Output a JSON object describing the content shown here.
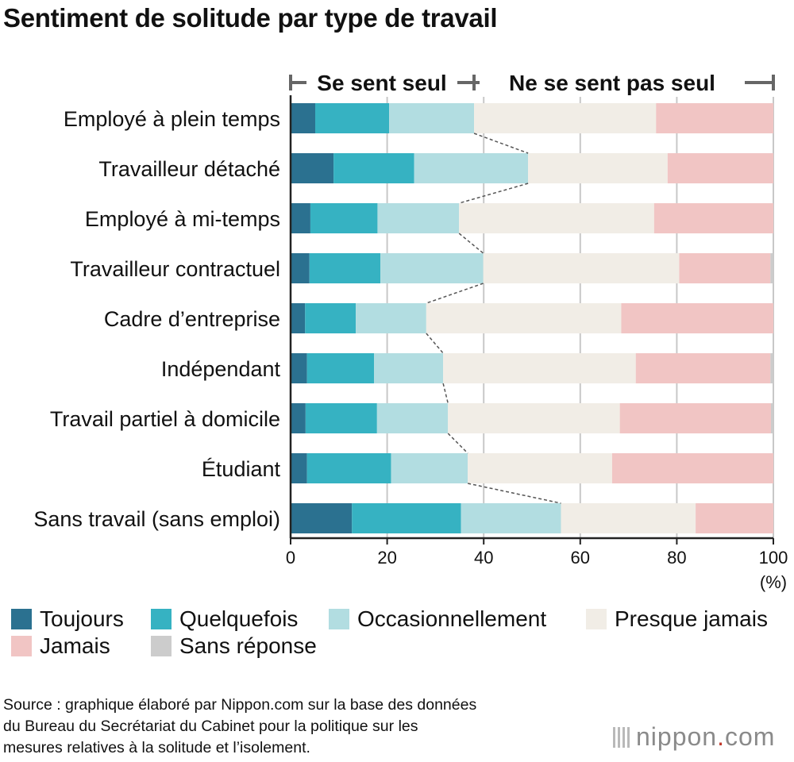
{
  "title": "Sentiment de solitude par type de travail",
  "chart_data": {
    "type": "bar",
    "orientation": "horizontal",
    "stacked": true,
    "title": "Sentiment de solitude par type de travail",
    "categories": [
      "Employé à plein temps",
      "Travailleur détaché",
      "Employé à mi-temps",
      "Travailleur contractuel",
      "Cadre d’entreprise",
      "Indépendant",
      "Travail partiel à domicile",
      "Étudiant",
      "Sans travail (sans emploi)"
    ],
    "series": [
      {
        "name": "Toujours",
        "color": "#2b7190",
        "values": [
          5.1,
          8.9,
          4.1,
          3.9,
          3.0,
          3.4,
          3.1,
          3.4,
          12.7
        ]
      },
      {
        "name": "Quelquefois",
        "color": "#36b2c2",
        "values": [
          15.3,
          16.7,
          13.9,
          14.7,
          10.5,
          13.9,
          14.8,
          17.4,
          22.6
        ]
      },
      {
        "name": "Occasionnellement",
        "color": "#b2dde1",
        "values": [
          17.6,
          23.6,
          16.9,
          21.3,
          14.6,
          14.3,
          14.7,
          15.9,
          20.7
        ]
      },
      {
        "name": "Presque jamais",
        "color": "#f1ede6",
        "values": [
          37.7,
          28.9,
          40.4,
          40.6,
          40.4,
          39.9,
          35.6,
          29.9,
          27.9
        ]
      },
      {
        "name": "Jamais",
        "color": "#f1c5c4",
        "values": [
          24.3,
          21.9,
          24.7,
          18.9,
          31.5,
          27.9,
          31.3,
          33.4,
          16.1
        ]
      },
      {
        "name": "Sans réponse",
        "color": "#cccccc",
        "values": [
          0.0,
          0.0,
          0.0,
          0.6,
          0.0,
          0.6,
          0.5,
          0.0,
          0.0
        ]
      }
    ],
    "xlabel": "",
    "xunit": "(%)",
    "xlim": [
      0,
      100
    ],
    "xticks": [
      0,
      20,
      40,
      60,
      80,
      100
    ],
    "grid": true,
    "divider_after_series": 2,
    "group_labels": {
      "lonely": "Se sent seul",
      "not_lonely": "Ne se sent pas seul"
    },
    "legend_position": "bottom"
  },
  "legend": {
    "items": [
      {
        "label": "Toujours",
        "color": "#2b7190"
      },
      {
        "label": "Quelquefois",
        "color": "#36b2c2"
      },
      {
        "label": "Occasionnellement",
        "color": "#b2dde1"
      },
      {
        "label": "Presque jamais",
        "color": "#f1ede6"
      },
      {
        "label": "Jamais",
        "color": "#f1c5c4"
      },
      {
        "label": "Sans réponse",
        "color": "#cccccc"
      }
    ]
  },
  "source": "Source : graphique élaboré par Nippon.com sur la base des données\ndu Bureau du Secrétariat du Cabinet pour la politique sur les\nmesures relatives à la solitude et l’isolement.",
  "logo": {
    "name": "nippon",
    "dot": ".",
    "suffix": "com"
  }
}
